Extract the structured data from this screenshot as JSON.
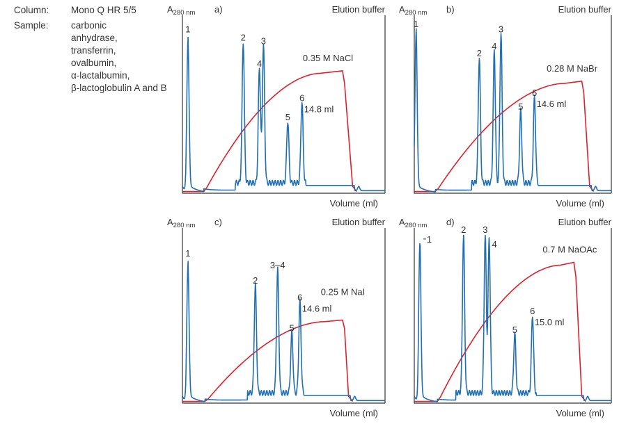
{
  "info": {
    "column_label": "Column:",
    "column_value": "Mono Q HR 5/5",
    "sample_label": "Sample:",
    "sample_lines": [
      "carbonic",
      "anhydrase,",
      "transferrin,",
      "ovalbumin,",
      "α-lactalbumin,",
      "β-lactoglobulin A and B"
    ]
  },
  "colors": {
    "absorbance": "#1f6fb2",
    "gradient": "#e0202a",
    "axis": "#333333"
  },
  "chart_data": [
    {
      "type": "line",
      "panel": "a)",
      "ylabel_main": "A",
      "ylabel_sub": "280 nm",
      "xlabel": "Volume (ml)",
      "right_label": "Elution buffer",
      "xlim": [
        0,
        100
      ],
      "ylim": [
        0,
        100
      ],
      "grid": false,
      "peaks": [
        {
          "label": "1",
          "volume": 2.7,
          "absorbance": 91
        },
        {
          "label": "2",
          "volume": 30,
          "absorbance": 86
        },
        {
          "label": "4",
          "volume": 38,
          "absorbance": 71
        },
        {
          "label": "3",
          "volume": 40,
          "absorbance": 84
        },
        {
          "label": "5",
          "volume": 52,
          "absorbance": 40
        },
        {
          "label": "6",
          "volume": 59,
          "absorbance": 51
        }
      ],
      "gradient": {
        "label": "0.35 M NaCl",
        "start": 10.5,
        "plateau_start": 68,
        "plateau_end": 79,
        "end": 85,
        "level": 71
      },
      "peak6_volume": "14.8 ml"
    },
    {
      "type": "line",
      "panel": "b)",
      "ylabel_main": "A",
      "ylabel_sub": "280 nm",
      "xlabel": "Volume (ml)",
      "right_label": "Elution buffer",
      "xlim": [
        0,
        100
      ],
      "ylim": [
        0,
        100
      ],
      "grid": false,
      "peaks": [
        {
          "label": "1",
          "volume": 0.9,
          "absorbance": 94
        },
        {
          "label": "2",
          "volume": 33,
          "absorbance": 77
        },
        {
          "label": "4",
          "volume": 40.6,
          "absorbance": 81
        },
        {
          "label": "3",
          "volume": 44,
          "absorbance": 91
        },
        {
          "label": "5",
          "volume": 54,
          "absorbance": 46
        },
        {
          "label": "6",
          "volume": 61,
          "absorbance": 54
        }
      ],
      "gradient": {
        "label": "0.28 M NaBr",
        "start": 10.6,
        "plateau_start": 76,
        "plateau_end": 85,
        "end": 90,
        "level": 65
      },
      "peak6_volume": "14.6 ml"
    },
    {
      "type": "line",
      "panel": "c)",
      "ylabel_main": "A",
      "ylabel_sub": "280 nm",
      "xlabel": "Volume (ml)",
      "right_label": "Elution buffer",
      "xlim": [
        0,
        100
      ],
      "ylim": [
        0,
        100
      ],
      "grid": false,
      "peaks": [
        {
          "label": "1",
          "volume": 2.7,
          "absorbance": 84
        },
        {
          "label": "2",
          "volume": 36,
          "absorbance": 68
        },
        {
          "label": "3–4",
          "volume": 47,
          "absorbance": 77
        },
        {
          "label": "5",
          "volume": 54,
          "absorbance": 40
        },
        {
          "label": "6",
          "volume": 58,
          "absorbance": 58
        }
      ],
      "gradient": {
        "label": "0.25 M NaI",
        "start": 11,
        "plateau_start": 70,
        "plateau_end": 79,
        "end": 83,
        "level": 49
      },
      "peak6_volume": "14.6 ml"
    },
    {
      "type": "line",
      "panel": "d)",
      "ylabel_main": "A",
      "ylabel_sub": "280 nm",
      "xlabel": "Volume (ml)",
      "right_label": "Elution buffer",
      "xlim": [
        0,
        100
      ],
      "ylim": [
        0,
        100
      ],
      "grid": false,
      "peaks": [
        {
          "label": "1",
          "volume": 2.8,
          "absorbance": 98
        },
        {
          "label": "2",
          "volume": 25,
          "absorbance": 98
        },
        {
          "label": "3",
          "volume": 36,
          "absorbance": 98
        },
        {
          "label": "4",
          "volume": 38,
          "absorbance": 96
        },
        {
          "label": "5",
          "volume": 51,
          "absorbance": 39
        },
        {
          "label": "6",
          "volume": 60,
          "absorbance": 50
        }
      ],
      "gradient": {
        "label": "0.7 M NaOAc",
        "start": 11.7,
        "plateau_start": 74,
        "plateau_end": 81,
        "end": 86,
        "level": 83
      },
      "peak6_volume": "15.0 ml"
    }
  ]
}
